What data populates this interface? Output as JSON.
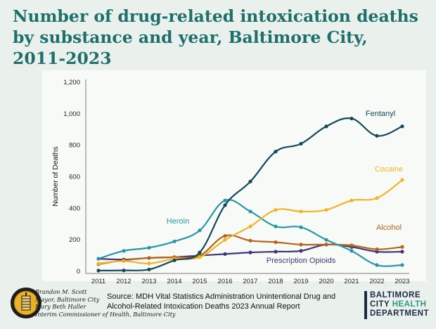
{
  "title": {
    "line1": "Number of drug-related intoxication deaths",
    "line2": "by substance and year, Baltimore City,",
    "line3": "2011-2023"
  },
  "chart_data": {
    "type": "line",
    "title": "Number of drug-related intoxication deaths by substance and year, Baltimore City, 2011-2023",
    "xlabel": "",
    "ylabel": "Number of Deaths",
    "ylim": [
      0,
      1200
    ],
    "yticks": [
      0,
      200,
      400,
      600,
      800,
      1000,
      1200
    ],
    "ytick_labels": [
      "0",
      "200",
      "400",
      "600",
      "800",
      "1,000",
      "1,200"
    ],
    "x": [
      "2011",
      "2012",
      "2013",
      "2014",
      "2015",
      "2016",
      "2017",
      "2018",
      "2019",
      "2020",
      "2021",
      "2022",
      "2023"
    ],
    "grid": false,
    "series": [
      {
        "name": "Fentanyl",
        "color": "#15495a",
        "values": [
          5,
          6,
          12,
          70,
          120,
          420,
          570,
          760,
          810,
          920,
          970,
          860,
          920
        ]
      },
      {
        "name": "Heroin",
        "color": "#2a97a6",
        "values": [
          80,
          130,
          150,
          190,
          260,
          450,
          380,
          285,
          280,
          200,
          130,
          40,
          40
        ]
      },
      {
        "name": "Cocaine",
        "color": "#f0b429",
        "values": [
          50,
          65,
          50,
          80,
          90,
          200,
          285,
          390,
          380,
          390,
          450,
          465,
          580
        ]
      },
      {
        "name": "Alcohol",
        "color": "#b7651d",
        "values": [
          45,
          70,
          85,
          90,
          100,
          225,
          195,
          185,
          170,
          170,
          165,
          140,
          155
        ]
      },
      {
        "name": "Prescription Opioids",
        "color": "#3f3678",
        "values": [
          80,
          75,
          85,
          90,
          100,
          110,
          120,
          125,
          130,
          170,
          155,
          125,
          125
        ]
      }
    ],
    "annotations": [
      {
        "text": "Fentanyl",
        "series": "Fentanyl"
      },
      {
        "text": "Cocaine",
        "series": "Cocaine"
      },
      {
        "text": "Alcohol",
        "series": "Alcohol"
      },
      {
        "text": "Heroin",
        "series": "Heroin"
      },
      {
        "text": "Prescription Opioids",
        "series": "Prescription Opioids"
      }
    ]
  },
  "footer": {
    "officials": [
      "Brandon M. Scott",
      "Mayor, Baltimore City",
      "Mary Beth Haller",
      "Interim Commissioner of Health, Baltimore City"
    ],
    "source_line1": "Source: MDH Vital Statistics Administration Unintentional Drug and",
    "source_line2": "Alcohol-Related Intoxication Deaths 2023 Annual Report",
    "dept_line1": "BALTIMORE",
    "dept_line2a": "CITY ",
    "dept_line2b": "HEALTH",
    "dept_line3": "DEPARTMENT"
  }
}
